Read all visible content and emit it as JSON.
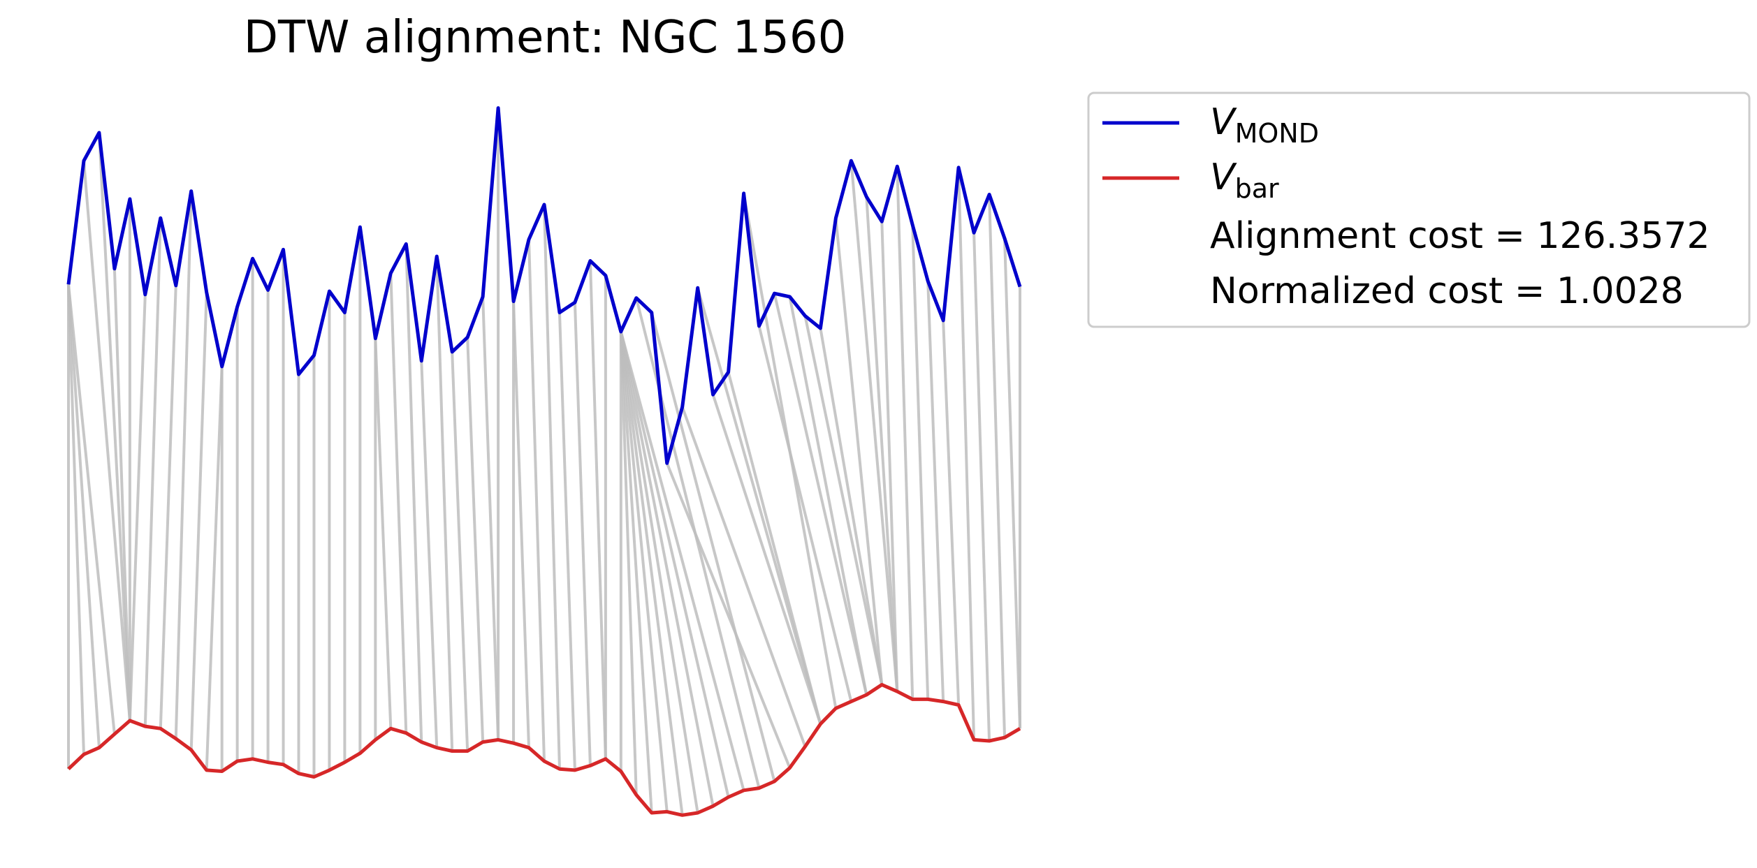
{
  "chart_data": {
    "type": "line",
    "title": "DTW alignment: NGC 1560",
    "xlabel": "",
    "ylabel": "",
    "axes_visible": false,
    "grid": false,
    "legend_placement": "outside-top-right",
    "colors": {
      "mond": "#0000cc",
      "bar": "#d62728",
      "alignment": "#bdbdbd"
    },
    "x_count": 63,
    "series": [
      {
        "key": "mond",
        "name_main": "V",
        "name_sub": "MOND",
        "values": [
          253,
          143,
          118,
          239,
          177,
          262,
          194,
          254,
          170,
          260,
          326,
          273,
          230,
          258,
          222,
          333,
          316,
          259,
          278,
          202,
          301,
          243,
          217,
          321,
          228,
          313,
          300,
          264,
          96,
          268,
          213,
          182,
          278,
          269,
          232,
          245,
          295,
          265,
          278,
          412,
          362,
          256,
          351,
          331,
          172,
          290,
          261,
          264,
          281,
          292,
          194,
          143,
          175,
          197,
          148,
          200,
          250,
          285,
          149,
          207,
          173,
          212,
          255
        ]
      },
      {
        "key": "bar",
        "name_main": "V",
        "name_sub": "bar",
        "values": [
          684,
          671,
          665,
          653,
          641,
          646,
          648,
          657,
          667,
          685,
          686,
          677,
          675,
          678,
          680,
          688,
          691,
          685,
          678,
          670,
          658,
          648,
          652,
          660,
          665,
          668,
          668,
          660,
          658,
          661,
          665,
          677,
          684,
          685,
          681,
          675,
          686,
          707,
          723,
          722,
          725,
          723,
          717,
          709,
          703,
          701,
          695,
          683,
          664,
          644,
          630,
          624,
          618,
          609,
          615,
          622,
          622,
          624,
          627,
          658,
          659,
          656,
          648
        ]
      }
    ],
    "alignment_path": [
      [
        0,
        0
      ],
      [
        0,
        1
      ],
      [
        0,
        2
      ],
      [
        0,
        3
      ],
      [
        1,
        4
      ],
      [
        2,
        4
      ],
      [
        3,
        4
      ],
      [
        4,
        4
      ],
      [
        5,
        4
      ],
      [
        6,
        5
      ],
      [
        7,
        6
      ],
      [
        8,
        7
      ],
      [
        9,
        8
      ],
      [
        10,
        9
      ],
      [
        10,
        10
      ],
      [
        11,
        11
      ],
      [
        12,
        12
      ],
      [
        13,
        13
      ],
      [
        14,
        14
      ],
      [
        15,
        15
      ],
      [
        16,
        16
      ],
      [
        17,
        17
      ],
      [
        18,
        18
      ],
      [
        19,
        19
      ],
      [
        20,
        20
      ],
      [
        20,
        21
      ],
      [
        21,
        22
      ],
      [
        22,
        23
      ],
      [
        23,
        24
      ],
      [
        24,
        25
      ],
      [
        25,
        26
      ],
      [
        26,
        27
      ],
      [
        27,
        28
      ],
      [
        28,
        28
      ],
      [
        29,
        29
      ],
      [
        29,
        30
      ],
      [
        30,
        31
      ],
      [
        31,
        32
      ],
      [
        32,
        33
      ],
      [
        33,
        34
      ],
      [
        34,
        35
      ],
      [
        35,
        35
      ],
      [
        36,
        36
      ],
      [
        36,
        37
      ],
      [
        36,
        38
      ],
      [
        36,
        39
      ],
      [
        36,
        40
      ],
      [
        36,
        41
      ],
      [
        36,
        42
      ],
      [
        36,
        43
      ],
      [
        36,
        44
      ],
      [
        37,
        45
      ],
      [
        38,
        46
      ],
      [
        39,
        47
      ],
      [
        40,
        48
      ],
      [
        41,
        49
      ],
      [
        42,
        49
      ],
      [
        43,
        49
      ],
      [
        44,
        50
      ],
      [
        45,
        51
      ],
      [
        46,
        52
      ],
      [
        47,
        52
      ],
      [
        48,
        53
      ],
      [
        49,
        53
      ],
      [
        50,
        53
      ],
      [
        51,
        54
      ],
      [
        52,
        54
      ],
      [
        53,
        54
      ],
      [
        54,
        55
      ],
      [
        55,
        56
      ],
      [
        56,
        57
      ],
      [
        57,
        58
      ],
      [
        58,
        59
      ],
      [
        59,
        60
      ],
      [
        60,
        61
      ],
      [
        61,
        62
      ],
      [
        62,
        62
      ]
    ],
    "annotations": [
      "Alignment cost = 126.3572",
      "Normalized cost = 1.0028"
    ]
  }
}
